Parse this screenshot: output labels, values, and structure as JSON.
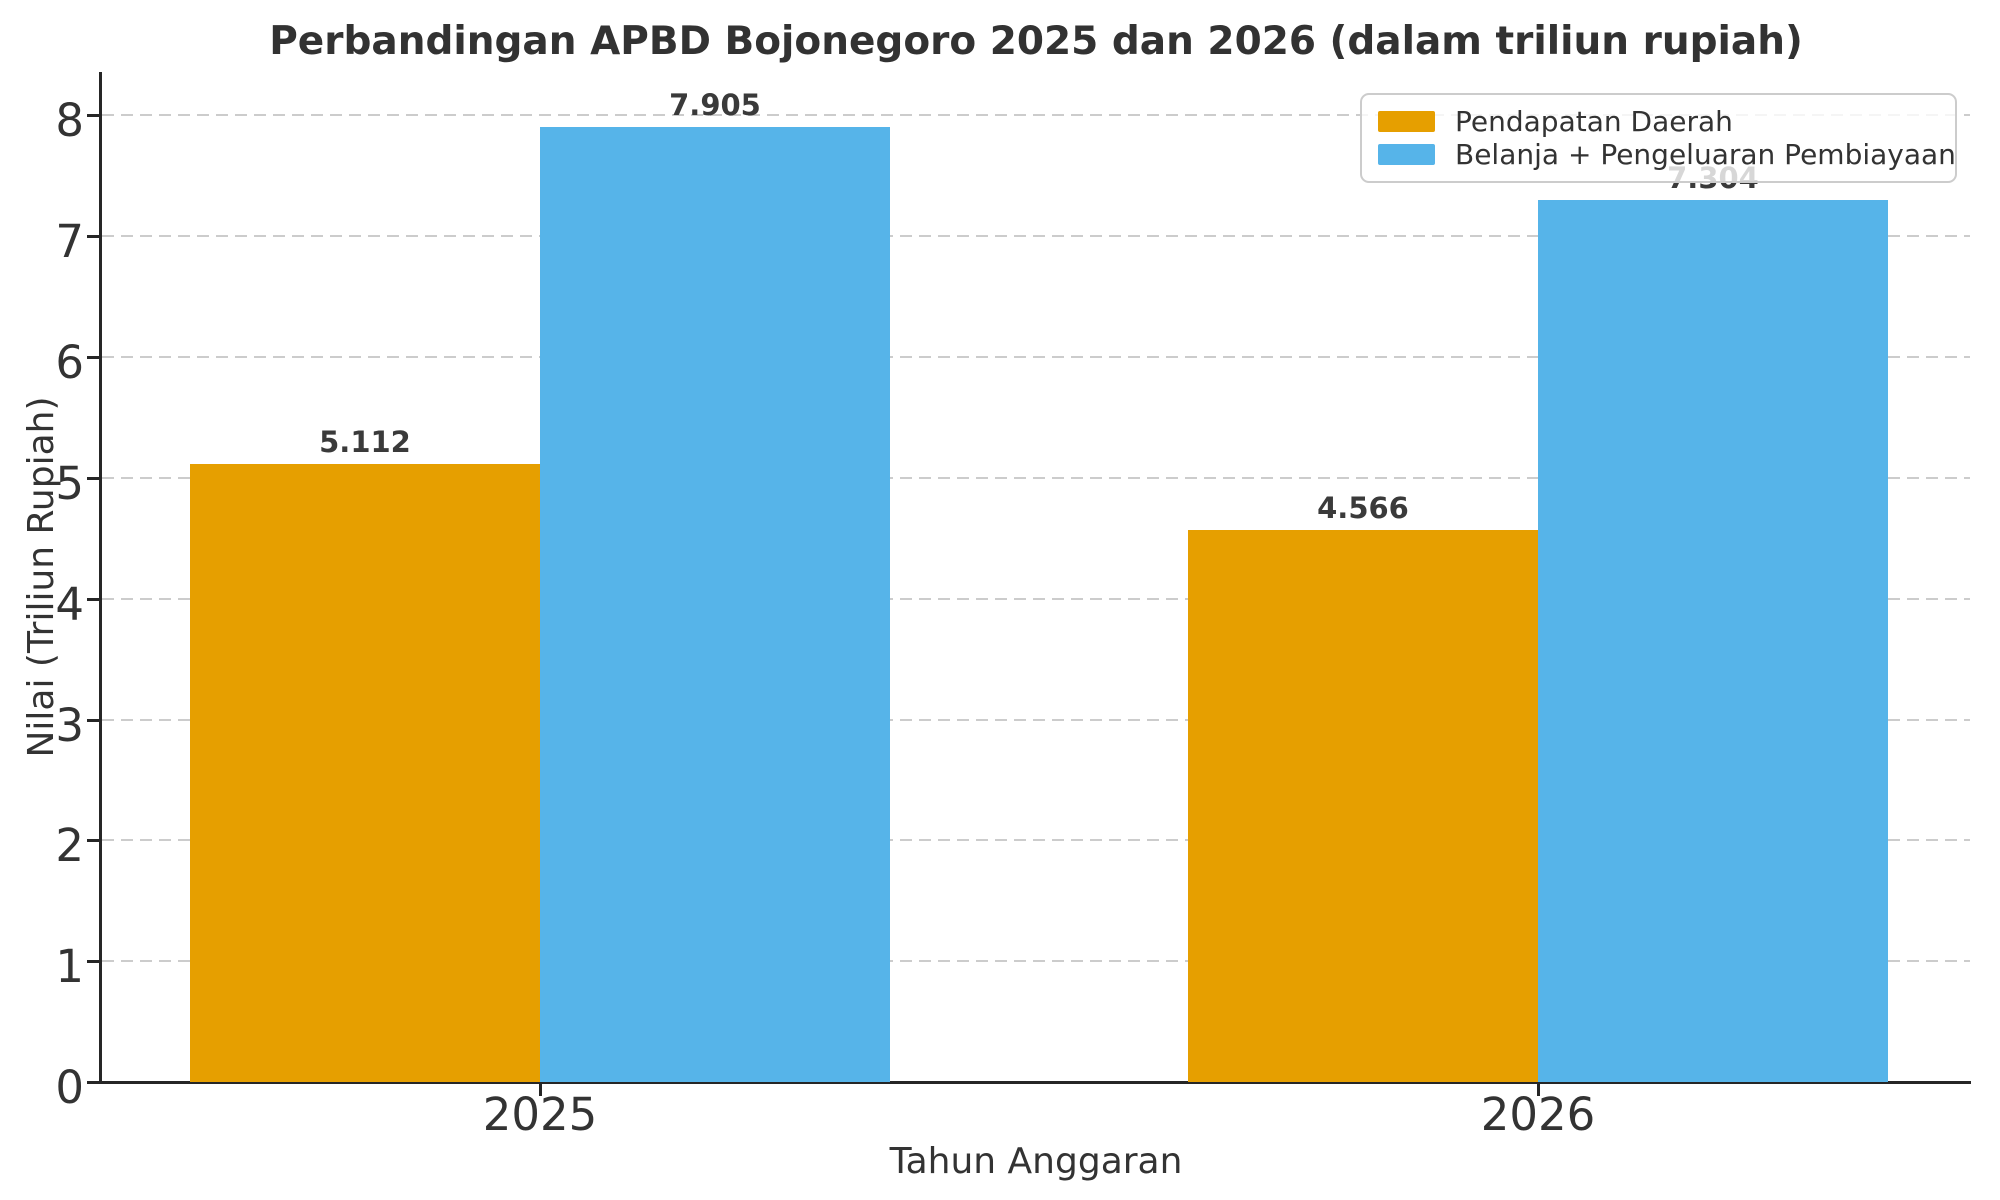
{
  "title": "Perbandingan APBD Bojonegoro 2025 dan 2026 (dalam triliun rupiah)",
  "chart_data": {
    "type": "bar",
    "categories": [
      "2025",
      "2026"
    ],
    "series": [
      {
        "name": "Pendapatan Daerah",
        "color": "#E69F00",
        "values": [
          5.112,
          4.566
        ],
        "value_labels": [
          "5.112",
          "4.566"
        ]
      },
      {
        "name": "Belanja + Pengeluaran Pembiayaan",
        "color": "#56B4E9",
        "values": [
          7.905,
          7.304
        ],
        "value_labels": [
          "7.905",
          "7.304"
        ]
      }
    ],
    "title": "Perbandingan APBD Bojonegoro 2025 dan 2026 (dalam triliun rupiah)",
    "xlabel": "Tahun Anggaran",
    "ylabel": "Nilai (Triliun Rupiah)",
    "ylim": [
      0,
      8.36
    ],
    "yticks": [
      0,
      1,
      2,
      3,
      4,
      5,
      6,
      7,
      8
    ],
    "grid": "horizontal-dashed",
    "legend_position": "upper right"
  },
  "legend": {
    "items": [
      {
        "label": "Pendapatan Daerah",
        "color": "#E69F00"
      },
      {
        "label": "Belanja + Pengeluaran Pembiayaan",
        "color": "#56B4E9"
      }
    ]
  }
}
